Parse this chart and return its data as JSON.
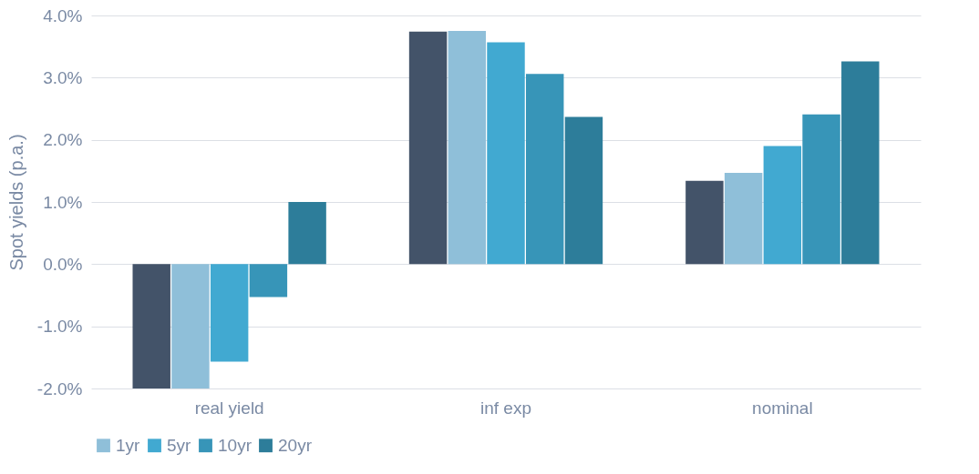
{
  "chart_data": {
    "type": "bar",
    "ylabel": "Spot yields (p.a.)",
    "categories": [
      "real yield",
      "inf exp",
      "nominal"
    ],
    "series": [
      {
        "color": "#435369",
        "values": [
          -2.0,
          3.74,
          1.34
        ]
      },
      {
        "name": "1yr",
        "color": "#8fbfd9",
        "values": [
          -2.0,
          3.75,
          1.47
        ]
      },
      {
        "name": "5yr",
        "color": "#41a9d1",
        "values": [
          -1.57,
          3.57,
          1.9
        ]
      },
      {
        "name": "10yr",
        "color": "#3795b8",
        "values": [
          -0.53,
          3.06,
          2.41
        ]
      },
      {
        "name": "20yr",
        "color": "#2d7d9a",
        "values": [
          1.0,
          2.37,
          3.26
        ]
      }
    ],
    "ylim": [
      -2.0,
      4.0
    ],
    "yticks": [
      {
        "value": -2,
        "label": "-2.0%"
      },
      {
        "value": -1,
        "label": "-1.0%"
      },
      {
        "value": 0,
        "label": "0.0%"
      },
      {
        "value": 1,
        "label": "1.0%"
      },
      {
        "value": 2,
        "label": "2.0%"
      },
      {
        "value": 3,
        "label": "3.0%"
      },
      {
        "value": 4,
        "label": "4.0%"
      }
    ],
    "grid": "y",
    "legend": "bottom"
  }
}
